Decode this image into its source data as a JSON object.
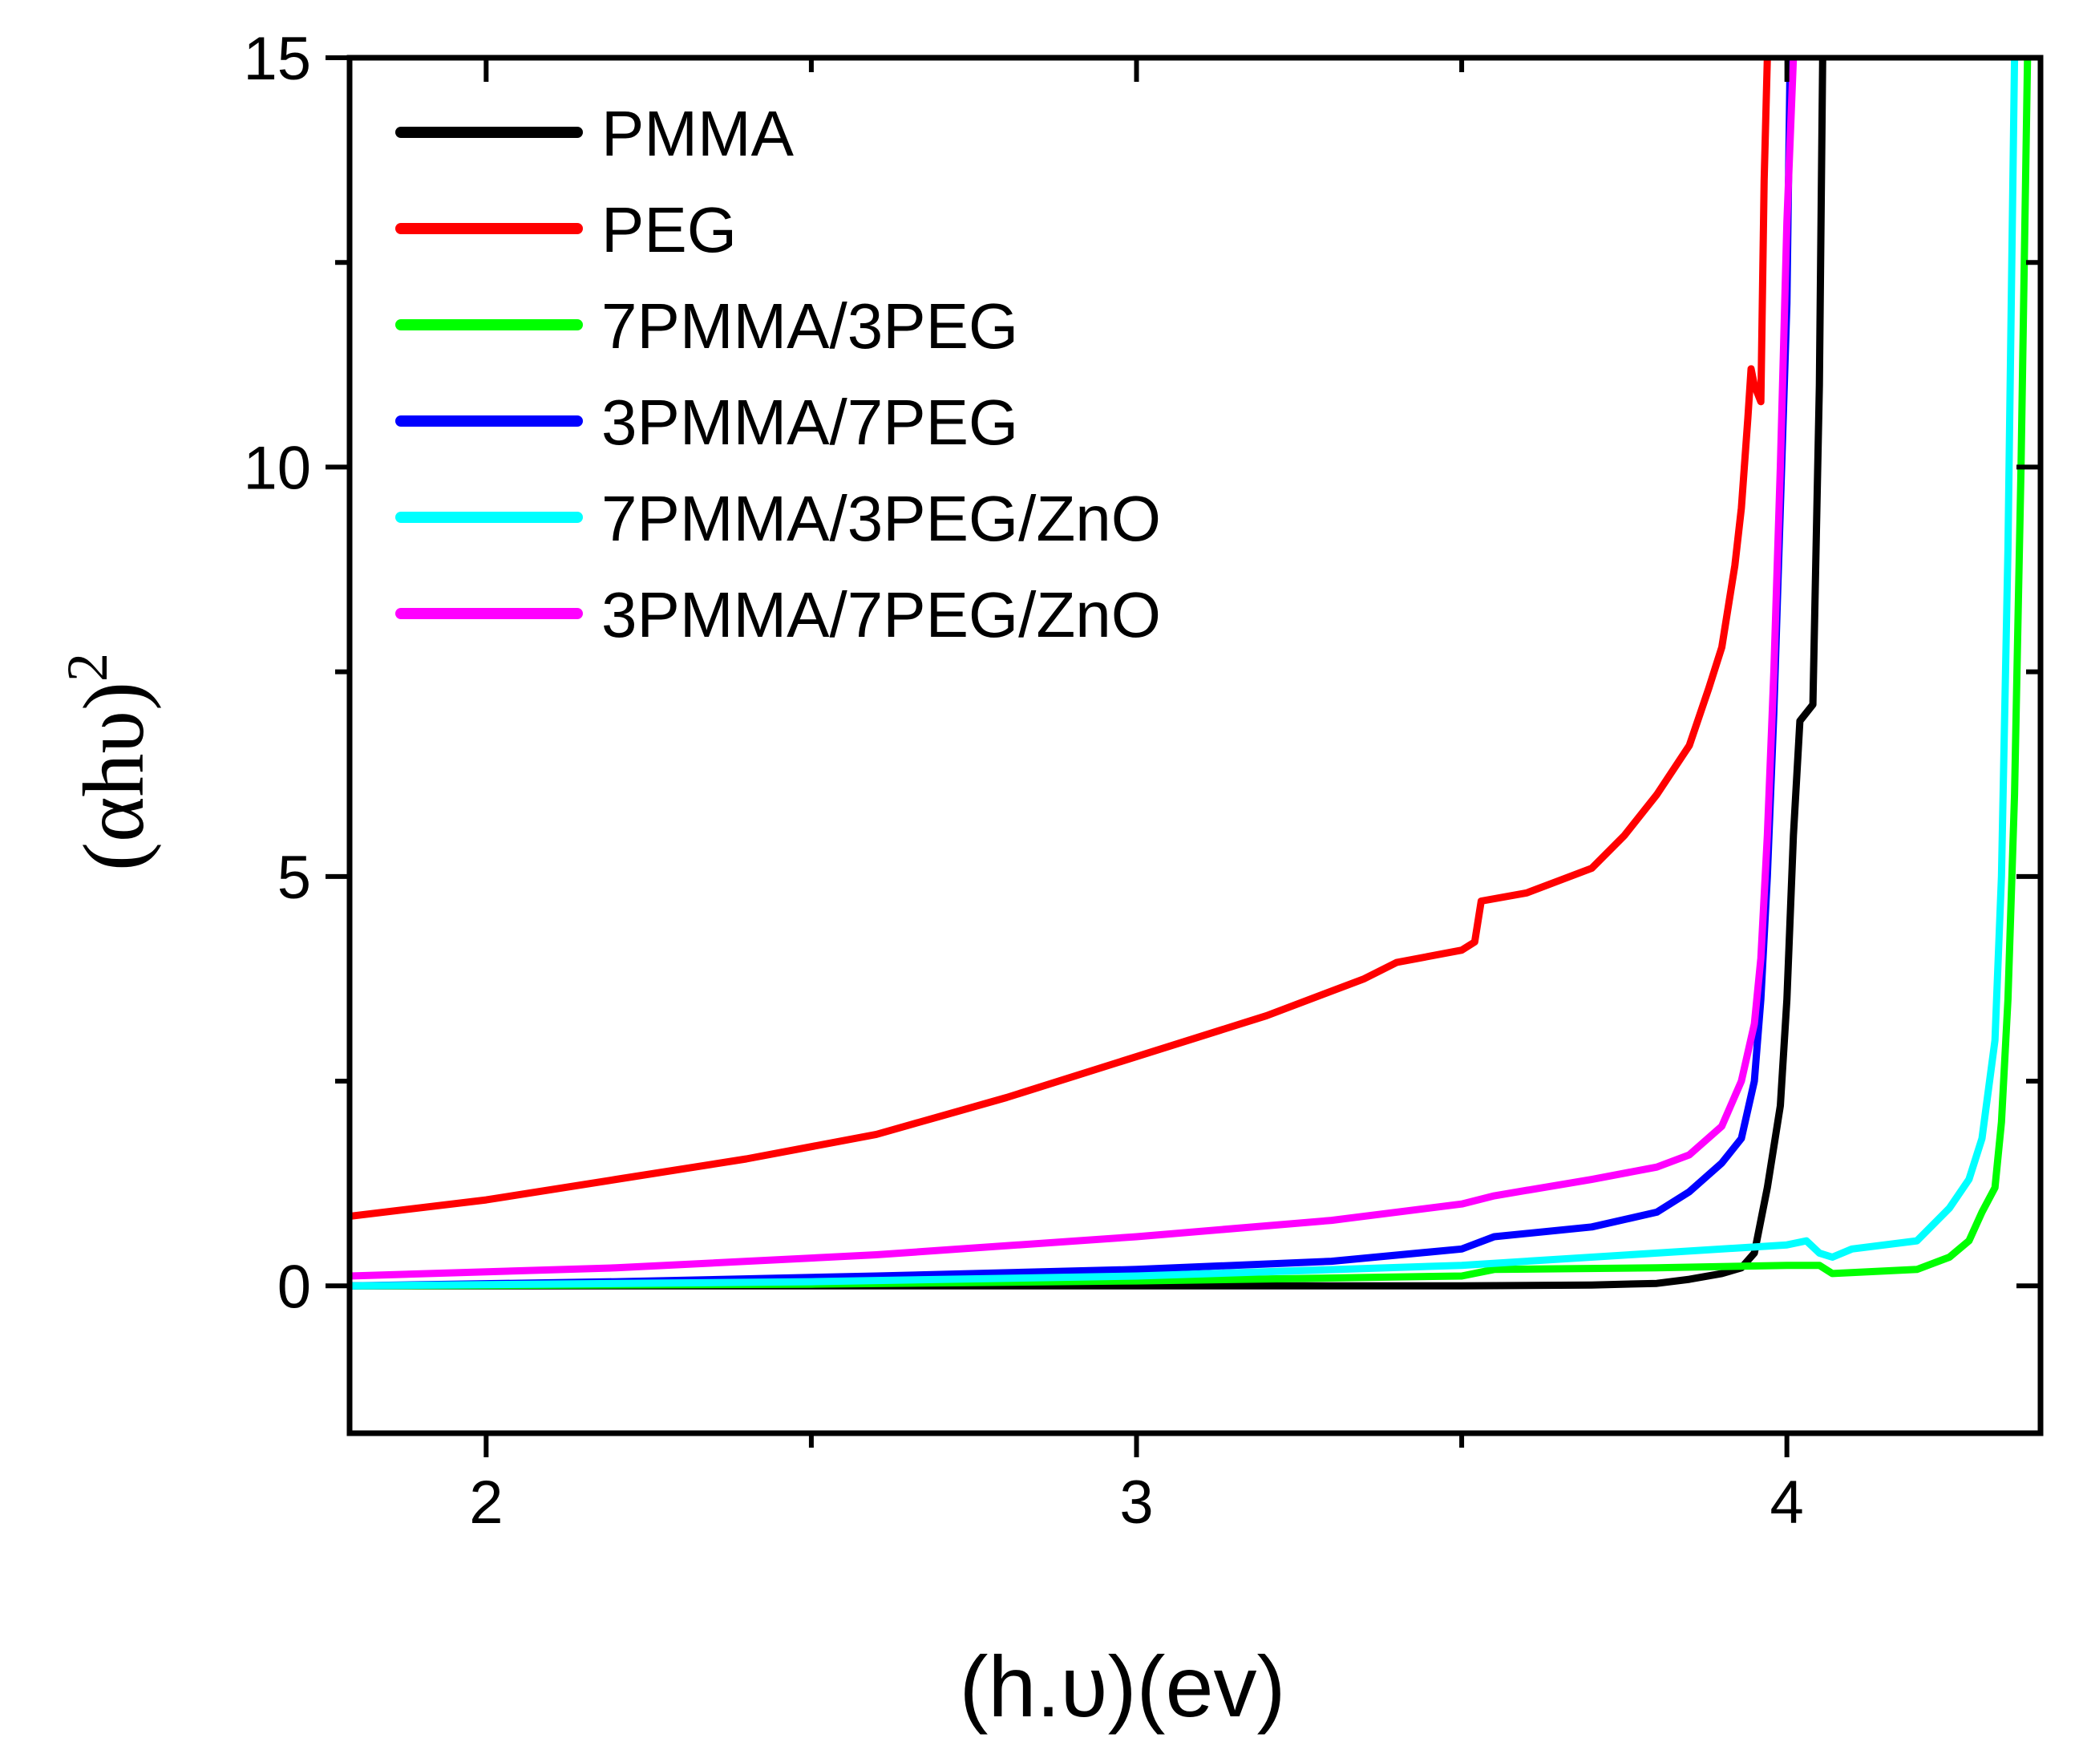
{
  "chart_data": {
    "type": "line",
    "xlabel": "(h.υ)(ev)",
    "ylabel": "(αhυ)",
    "ylabel_sup": "2",
    "xlim": [
      1.79,
      4.39
    ],
    "ylim": [
      -1.8,
      15
    ],
    "x_ticks": [
      {
        "value": 2,
        "label": "2"
      },
      {
        "value": 3,
        "label": "3"
      },
      {
        "value": 4,
        "label": "4"
      }
    ],
    "x_minor_ticks": [
      2.5,
      3.5
    ],
    "y_ticks": [
      {
        "value": 0,
        "label": "0"
      },
      {
        "value": 5,
        "label": "5"
      },
      {
        "value": 10,
        "label": "10"
      },
      {
        "value": 15,
        "label": "15"
      }
    ],
    "y_minor_ticks": [
      2.5,
      7.5,
      12.5
    ],
    "legend_position": "top-left",
    "series": [
      {
        "name": "PMMA",
        "color": "#000000",
        "points": [
          [
            1.79,
            0
          ],
          [
            2.5,
            0
          ],
          [
            3.0,
            0
          ],
          [
            3.5,
            0
          ],
          [
            3.7,
            0.01
          ],
          [
            3.8,
            0.03
          ],
          [
            3.85,
            0.08
          ],
          [
            3.9,
            0.15
          ],
          [
            3.93,
            0.22
          ],
          [
            3.95,
            0.4
          ],
          [
            3.97,
            1.2
          ],
          [
            3.99,
            2.2
          ],
          [
            4.0,
            3.5
          ],
          [
            4.01,
            5.5
          ],
          [
            4.02,
            6.9
          ],
          [
            4.04,
            7.1
          ],
          [
            4.05,
            11
          ],
          [
            4.055,
            15
          ]
        ]
      },
      {
        "name": "PEG",
        "color": "#ff0000",
        "points": [
          [
            1.79,
            0.85
          ],
          [
            2.0,
            1.05
          ],
          [
            2.2,
            1.3
          ],
          [
            2.4,
            1.55
          ],
          [
            2.6,
            1.85
          ],
          [
            2.8,
            2.3
          ],
          [
            3.0,
            2.8
          ],
          [
            3.2,
            3.3
          ],
          [
            3.35,
            3.75
          ],
          [
            3.4,
            3.95
          ],
          [
            3.5,
            4.1
          ],
          [
            3.52,
            4.2
          ],
          [
            3.53,
            4.7
          ],
          [
            3.6,
            4.8
          ],
          [
            3.65,
            4.95
          ],
          [
            3.7,
            5.1
          ],
          [
            3.75,
            5.5
          ],
          [
            3.8,
            6.0
          ],
          [
            3.85,
            6.6
          ],
          [
            3.88,
            7.3
          ],
          [
            3.9,
            7.8
          ],
          [
            3.92,
            8.8
          ],
          [
            3.93,
            9.5
          ],
          [
            3.94,
            10.6
          ],
          [
            3.945,
            11.2
          ],
          [
            3.95,
            11.0
          ],
          [
            3.96,
            10.8
          ],
          [
            3.965,
            13.5
          ],
          [
            3.97,
            15
          ]
        ]
      },
      {
        "name": "7PMMA/3PEG",
        "color": "#00ff00",
        "points": [
          [
            1.79,
            0
          ],
          [
            2.5,
            0.02
          ],
          [
            3.0,
            0.06
          ],
          [
            3.5,
            0.12
          ],
          [
            3.55,
            0.2
          ],
          [
            3.8,
            0.22
          ],
          [
            4.0,
            0.25
          ],
          [
            4.05,
            0.25
          ],
          [
            4.07,
            0.15
          ],
          [
            4.2,
            0.2
          ],
          [
            4.25,
            0.35
          ],
          [
            4.28,
            0.55
          ],
          [
            4.3,
            0.9
          ],
          [
            4.32,
            1.2
          ],
          [
            4.33,
            2.0
          ],
          [
            4.34,
            3.5
          ],
          [
            4.35,
            6.0
          ],
          [
            4.36,
            10
          ],
          [
            4.37,
            15
          ]
        ]
      },
      {
        "name": "3PMMA/7PEG",
        "color": "#0000ff",
        "points": [
          [
            1.79,
            0
          ],
          [
            2.2,
            0.05
          ],
          [
            2.6,
            0.12
          ],
          [
            3.0,
            0.2
          ],
          [
            3.3,
            0.3
          ],
          [
            3.5,
            0.45
          ],
          [
            3.55,
            0.6
          ],
          [
            3.7,
            0.72
          ],
          [
            3.8,
            0.9
          ],
          [
            3.85,
            1.15
          ],
          [
            3.9,
            1.5
          ],
          [
            3.93,
            1.8
          ],
          [
            3.95,
            2.5
          ],
          [
            3.96,
            3.5
          ],
          [
            3.97,
            5.0
          ],
          [
            3.98,
            7.0
          ],
          [
            3.99,
            9.5
          ],
          [
            4.0,
            12.0
          ],
          [
            4.005,
            15
          ]
        ]
      },
      {
        "name": "7PMMA/3PEG/ZnO",
        "color": "#00ffff",
        "points": [
          [
            1.79,
            0
          ],
          [
            2.5,
            0.05
          ],
          [
            3.0,
            0.12
          ],
          [
            3.5,
            0.25
          ],
          [
            3.8,
            0.4
          ],
          [
            4.0,
            0.5
          ],
          [
            4.03,
            0.55
          ],
          [
            4.05,
            0.4
          ],
          [
            4.07,
            0.35
          ],
          [
            4.1,
            0.45
          ],
          [
            4.2,
            0.55
          ],
          [
            4.25,
            0.95
          ],
          [
            4.28,
            1.3
          ],
          [
            4.3,
            1.8
          ],
          [
            4.32,
            3.0
          ],
          [
            4.33,
            5.0
          ],
          [
            4.34,
            9.0
          ],
          [
            4.345,
            12.0
          ],
          [
            4.35,
            15
          ]
        ]
      },
      {
        "name": "3PMMA/7PEG/ZnO",
        "color": "#ff00ff",
        "points": [
          [
            1.79,
            0.12
          ],
          [
            2.2,
            0.22
          ],
          [
            2.6,
            0.38
          ],
          [
            3.0,
            0.6
          ],
          [
            3.3,
            0.8
          ],
          [
            3.5,
            1.0
          ],
          [
            3.55,
            1.1
          ],
          [
            3.7,
            1.3
          ],
          [
            3.8,
            1.45
          ],
          [
            3.85,
            1.6
          ],
          [
            3.9,
            1.95
          ],
          [
            3.93,
            2.5
          ],
          [
            3.95,
            3.2
          ],
          [
            3.96,
            4.0
          ],
          [
            3.97,
            5.5
          ],
          [
            3.98,
            7.5
          ],
          [
            3.99,
            10.0
          ],
          [
            4.0,
            13.0
          ],
          [
            4.01,
            15
          ]
        ]
      }
    ]
  }
}
